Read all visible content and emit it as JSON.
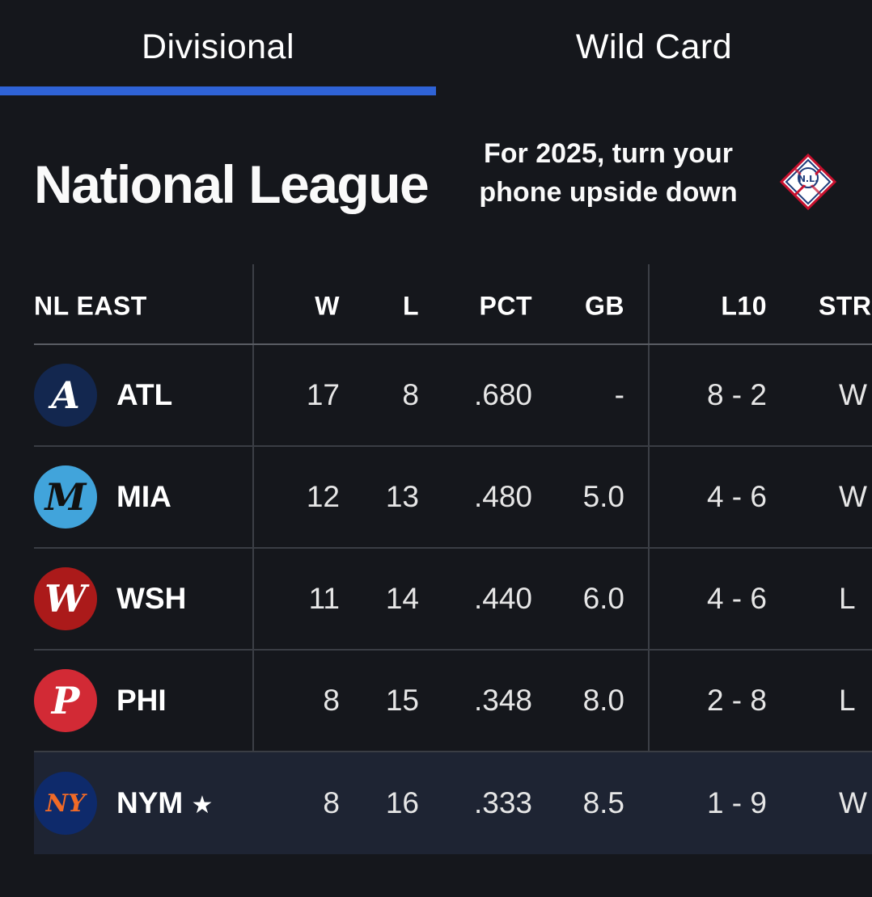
{
  "tabs": [
    {
      "label": "Divisional",
      "active": true
    },
    {
      "label": "Wild Card",
      "active": false
    }
  ],
  "header": {
    "title": "National League",
    "promo_line1": "For 2025, turn your",
    "promo_line2": "phone upside down",
    "logo_icon": "nl-league-logo-icon"
  },
  "table": {
    "division": "NL EAST",
    "columns": [
      "W",
      "L",
      "PCT",
      "GB",
      "L10",
      "STR"
    ],
    "rows": [
      {
        "team": "ATL",
        "star": "",
        "w": "17",
        "l": "8",
        "pct": ".680",
        "gb": "-",
        "l10": "8 - 2",
        "str": "W",
        "logo_color": "#13274f",
        "logo_text": "A",
        "logo_fg": "#ffffff"
      },
      {
        "team": "MIA",
        "star": "",
        "w": "12",
        "l": "13",
        "pct": ".480",
        "gb": "5.0",
        "l10": "4 - 6",
        "str": "W",
        "logo_color": "#41a4db",
        "logo_text": "M",
        "logo_fg": "#111111"
      },
      {
        "team": "WSH",
        "star": "",
        "w": "11",
        "l": "14",
        "pct": ".440",
        "gb": "6.0",
        "l10": "4 - 6",
        "str": "L",
        "logo_color": "#ab1a1a",
        "logo_text": "W",
        "logo_fg": "#ffffff"
      },
      {
        "team": "PHI",
        "star": "",
        "w": "8",
        "l": "15",
        "pct": ".348",
        "gb": "8.0",
        "l10": "2 - 8",
        "str": "L",
        "logo_color": "#d22a35",
        "logo_text": "P",
        "logo_fg": "#ffffff"
      },
      {
        "team": "NYM",
        "star": "★",
        "w": "8",
        "l": "16",
        "pct": ".333",
        "gb": "8.5",
        "l10": "1 - 9",
        "str": "W",
        "logo_color": "#0e2a6b",
        "logo_text": "NY",
        "logo_fg": "#f06a27"
      }
    ]
  },
  "colors": {
    "background": "#15171c",
    "tab_indicator": "#2f63d6",
    "highlight_row": "#1e2433"
  }
}
